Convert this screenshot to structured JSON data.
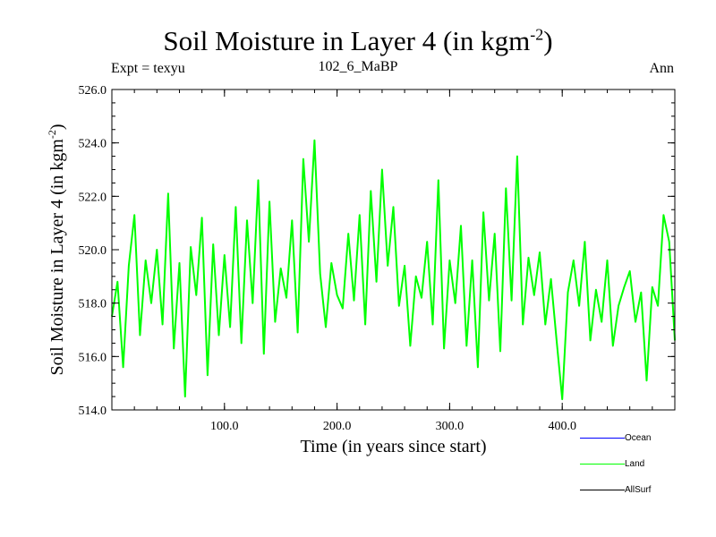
{
  "header": {
    "title_main": "Soil Moisture in Layer 4 (in kgm",
    "title_sup": "-2",
    "title_close": ")",
    "left": "Expt = texyu",
    "center": "102_6_MaBP",
    "right": "Ann"
  },
  "legend": [
    {
      "name": "Ocean",
      "color": "#0000ff"
    },
    {
      "name": "Land",
      "color": "#00ff00"
    },
    {
      "name": "AllSurf",
      "color": "#000000"
    }
  ],
  "chart_data": {
    "type": "line",
    "xlabel": "Time (in years since start)",
    "ylabel_main": "Soil Moisture in Layer 4 (in kgm",
    "ylabel_sup": "-2",
    "ylabel_close": ")",
    "xlim": [
      0,
      500
    ],
    "ylim": [
      514.0,
      526.0
    ],
    "xticks": [
      100,
      200,
      300,
      400
    ],
    "xtick_labels": [
      "100.0",
      "200.0",
      "300.0",
      "400.0"
    ],
    "yticks": [
      514,
      516,
      518,
      520,
      522,
      524,
      526
    ],
    "ytick_labels": [
      "514.0",
      "516.0",
      "518.0",
      "520.0",
      "522.0",
      "524.0",
      "526.0"
    ],
    "series": [
      {
        "name": "Land",
        "color": "#00ff00",
        "x": [
          0,
          5,
          10,
          15,
          20,
          25,
          30,
          35,
          40,
          45,
          50,
          55,
          60,
          65,
          70,
          75,
          80,
          85,
          90,
          95,
          100,
          105,
          110,
          115,
          120,
          125,
          130,
          135,
          140,
          145,
          150,
          155,
          160,
          165,
          170,
          175,
          180,
          185,
          190,
          195,
          200,
          205,
          210,
          215,
          220,
          225,
          230,
          235,
          240,
          245,
          250,
          255,
          260,
          265,
          270,
          275,
          280,
          285,
          290,
          295,
          300,
          305,
          310,
          315,
          320,
          325,
          330,
          335,
          340,
          345,
          350,
          355,
          360,
          365,
          370,
          375,
          380,
          385,
          390,
          395,
          400,
          405,
          410,
          415,
          420,
          425,
          430,
          435,
          440,
          445,
          450,
          455,
          460,
          465,
          470,
          475,
          480,
          485,
          490,
          495,
          500
        ],
        "values": [
          517.5,
          518.8,
          515.6,
          519.4,
          521.3,
          516.8,
          519.6,
          518.0,
          520.0,
          517.2,
          522.1,
          516.3,
          519.5,
          514.5,
          520.1,
          518.3,
          521.2,
          515.3,
          520.2,
          516.8,
          519.8,
          517.1,
          521.6,
          516.5,
          521.1,
          518.0,
          522.6,
          516.1,
          521.8,
          517.3,
          519.3,
          518.2,
          521.1,
          516.9,
          523.4,
          520.3,
          524.1,
          519.1,
          517.1,
          519.5,
          518.3,
          517.8,
          520.6,
          518.1,
          521.3,
          517.2,
          522.2,
          518.8,
          523.0,
          519.4,
          521.6,
          517.9,
          519.4,
          516.4,
          519.0,
          518.2,
          520.3,
          517.2,
          522.6,
          516.3,
          519.6,
          518.0,
          520.9,
          516.4,
          519.6,
          515.6,
          521.4,
          518.1,
          520.6,
          516.2,
          522.3,
          518.1,
          523.5,
          517.2,
          519.7,
          518.3,
          519.9,
          517.2,
          518.9,
          516.6,
          514.4,
          518.4,
          519.6,
          517.9,
          520.3,
          516.6,
          518.5,
          517.3,
          519.6,
          516.4,
          517.9,
          518.6,
          519.2,
          517.3,
          518.4,
          515.1,
          518.6,
          517.9,
          521.3,
          520.3,
          516.6
        ]
      }
    ]
  }
}
